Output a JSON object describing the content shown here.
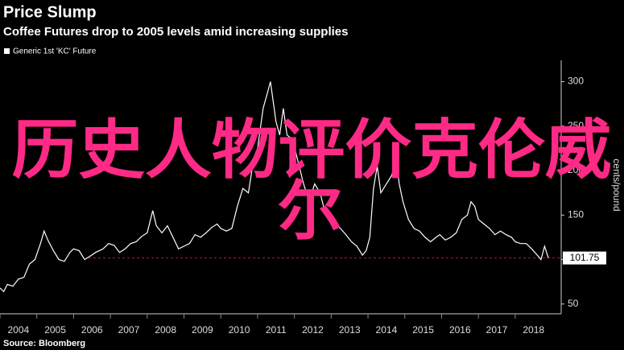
{
  "chart_data": {
    "type": "line",
    "title": "Price Slump",
    "subtitle": "Coffee Futures drop to 2005 levels amid increasing supplies",
    "y_label": "cents/pound",
    "source": "Source: Bloomberg",
    "overlay_text": [
      "历史人物评价克伦威",
      "尔"
    ],
    "xlim": [
      2004,
      2019.25
    ],
    "xticks": [
      2004,
      2005,
      2006,
      2007,
      2008,
      2009,
      2010,
      2011,
      2012,
      2013,
      2014,
      2015,
      2016,
      2017,
      2018
    ],
    "ylim": [
      39,
      324
    ],
    "yticks": [
      50,
      100,
      150,
      200,
      250,
      300
    ],
    "series": [
      {
        "name": "Generic 1st 'KC' Future",
        "color": "#ffffff",
        "x": [
          2004.0,
          2004.1,
          2004.2,
          2004.35,
          2004.5,
          2004.65,
          2004.8,
          2004.95,
          2005.1,
          2005.2,
          2005.3,
          2005.45,
          2005.6,
          2005.75,
          2005.9,
          2006.0,
          2006.15,
          2006.3,
          2006.45,
          2006.6,
          2006.8,
          2006.95,
          2007.1,
          2007.25,
          2007.4,
          2007.55,
          2007.7,
          2007.85,
          2008.0,
          2008.15,
          2008.25,
          2008.4,
          2008.55,
          2008.7,
          2008.85,
          2009.0,
          2009.15,
          2009.3,
          2009.45,
          2009.6,
          2009.75,
          2009.9,
          2010.0,
          2010.15,
          2010.3,
          2010.45,
          2010.6,
          2010.75,
          2010.9,
          2011.0,
          2011.15,
          2011.25,
          2011.35,
          2011.5,
          2011.6,
          2011.7,
          2011.8,
          2011.95,
          2012.1,
          2012.25,
          2012.4,
          2012.55,
          2012.7,
          2012.85,
          2012.95,
          2013.1,
          2013.25,
          2013.4,
          2013.55,
          2013.7,
          2013.85,
          2013.95,
          2014.05,
          2014.15,
          2014.25,
          2014.35,
          2014.5,
          2014.65,
          2014.75,
          2014.85,
          2014.95,
          2015.1,
          2015.25,
          2015.4,
          2015.55,
          2015.7,
          2015.85,
          2015.95,
          2016.1,
          2016.25,
          2016.4,
          2016.55,
          2016.7,
          2016.8,
          2016.9,
          2017.0,
          2017.15,
          2017.3,
          2017.45,
          2017.6,
          2017.75,
          2017.9,
          2018.0,
          2018.15,
          2018.3,
          2018.45,
          2018.6,
          2018.7,
          2018.8,
          2018.9
        ],
        "values": [
          68,
          64,
          72,
          70,
          78,
          80,
          95,
          100,
          118,
          132,
          122,
          110,
          100,
          98,
          108,
          112,
          110,
          100,
          104,
          108,
          112,
          118,
          116,
          108,
          112,
          118,
          120,
          126,
          130,
          155,
          138,
          130,
          138,
          125,
          112,
          115,
          118,
          128,
          125,
          130,
          136,
          140,
          135,
          132,
          135,
          160,
          180,
          175,
          215,
          225,
          270,
          285,
          300,
          255,
          240,
          270,
          240,
          235,
          210,
          185,
          165,
          185,
          175,
          150,
          145,
          140,
          135,
          128,
          120,
          115,
          105,
          110,
          125,
          180,
          205,
          175,
          185,
          195,
          215,
          185,
          165,
          145,
          135,
          132,
          125,
          120,
          125,
          128,
          122,
          125,
          130,
          145,
          150,
          165,
          160,
          145,
          140,
          135,
          128,
          132,
          128,
          125,
          120,
          118,
          118,
          112,
          105,
          100,
          115,
          101.75
        ]
      }
    ]
  }
}
